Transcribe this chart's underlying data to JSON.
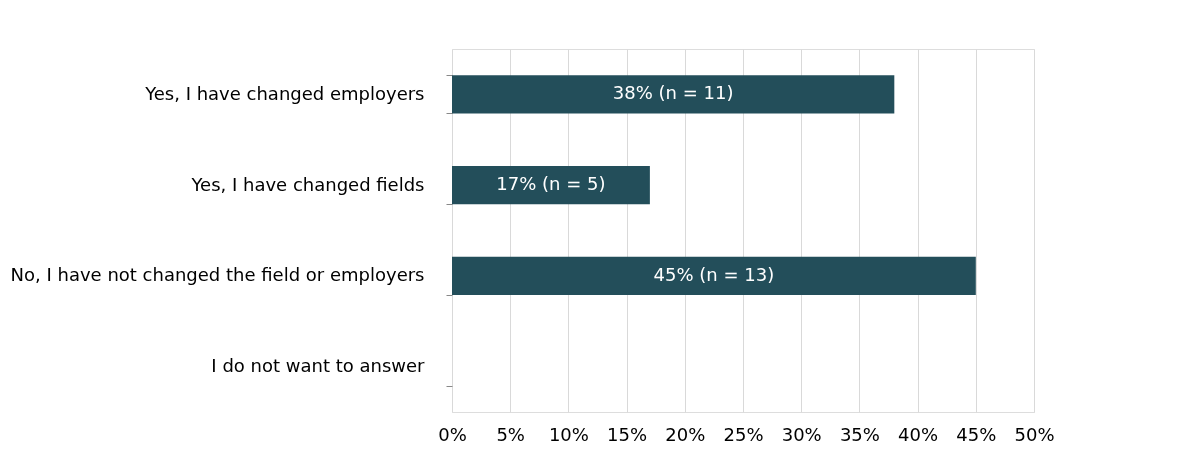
{
  "chart_data": {
    "type": "bar",
    "orientation": "horizontal",
    "categories": [
      "Yes, I have changed employers",
      "Yes, I have changed fields",
      "No, I have not changed the field or employers",
      "I do not want to answer"
    ],
    "values": [
      38,
      17,
      45,
      0
    ],
    "value_labels": [
      "38% (n = 11)",
      "17% (n = 5)",
      "45% (n = 13)",
      null
    ],
    "color": "#234e5a",
    "xlim": [
      0,
      50
    ],
    "xticks": [
      {
        "value": 0,
        "label": "0%"
      },
      {
        "value": 5,
        "label": "5%"
      },
      {
        "value": 10,
        "label": "10%"
      },
      {
        "value": 15,
        "label": "15%"
      },
      {
        "value": 20,
        "label": "20%"
      },
      {
        "value": 25,
        "label": "25%"
      },
      {
        "value": 30,
        "label": "30%"
      },
      {
        "value": 35,
        "label": "35%"
      },
      {
        "value": 40,
        "label": "40%"
      },
      {
        "value": 45,
        "label": "45%"
      },
      {
        "value": 50,
        "label": "50%"
      }
    ],
    "grid": "x"
  }
}
